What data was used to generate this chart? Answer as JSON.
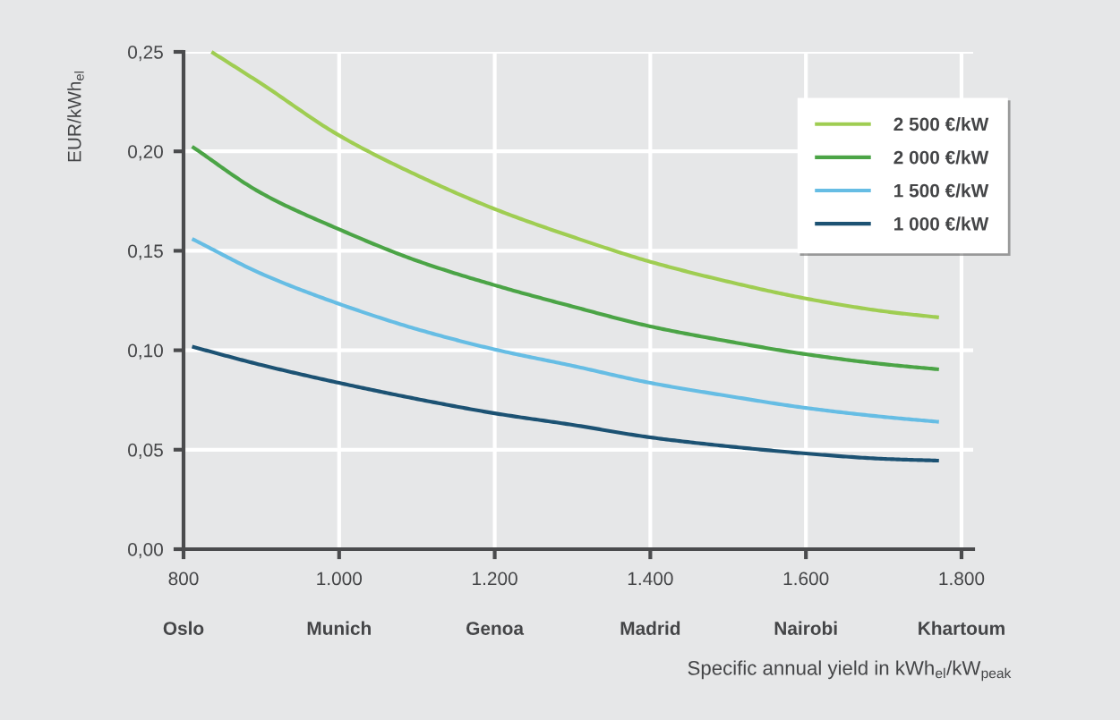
{
  "chart_data": {
    "type": "line",
    "xlabel": "Specific annual yield in kWh$_{el}$/kW$_{peak}$",
    "ylabel": "EUR/kWh$_{el}$",
    "series": [
      {
        "name": "2 500 €/kW",
        "color": "#9fcd52",
        "x": [
          836,
          900,
          1000,
          1100,
          1200,
          1300,
          1400,
          1500,
          1600,
          1700,
          1771
        ],
        "values": [
          0.25,
          0.234,
          0.208,
          0.188,
          0.171,
          0.157,
          0.1445,
          0.1345,
          0.126,
          0.1196,
          0.1165
        ]
      },
      {
        "name": "2 000 €/kW",
        "color": "#4ba446",
        "x": [
          811,
          900,
          1000,
          1100,
          1200,
          1300,
          1400,
          1500,
          1600,
          1700,
          1771
        ],
        "values": [
          0.2024,
          0.179,
          0.1608,
          0.145,
          0.1327,
          0.122,
          0.112,
          0.1045,
          0.098,
          0.093,
          0.0904
        ]
      },
      {
        "name": "1 500 €/kW",
        "color": "#66bde4",
        "x": [
          811,
          900,
          1000,
          1100,
          1200,
          1300,
          1400,
          1500,
          1600,
          1700,
          1771
        ],
        "values": [
          0.156,
          0.1385,
          0.1233,
          0.1106,
          0.1004,
          0.0922,
          0.0836,
          0.077,
          0.071,
          0.0665,
          0.064
        ]
      },
      {
        "name": "1 000 €/kW",
        "color": "#1c5273",
        "x": [
          811,
          900,
          1000,
          1100,
          1200,
          1300,
          1400,
          1500,
          1600,
          1700,
          1771
        ],
        "values": [
          0.1018,
          0.0926,
          0.0836,
          0.0755,
          0.0683,
          0.0625,
          0.0562,
          0.0517,
          0.0481,
          0.0454,
          0.0445
        ]
      }
    ],
    "xlim": [
      800,
      1815
    ],
    "xticks": [
      800,
      {
        "value": 1000,
        "label": "1.000"
      },
      {
        "value": 1200,
        "label": "1.200"
      },
      {
        "value": 1400,
        "label": "1.400"
      },
      {
        "value": 1600,
        "label": "1.600"
      },
      {
        "value": 1800,
        "label": "1.800"
      }
    ],
    "annotations": [
      "Oslo",
      "Munich",
      "Genoa",
      "Madrid",
      "Nairobi",
      "Khartoum"
    ],
    "ylim": [
      0,
      0.25
    ],
    "yticks": [
      {
        "value": 0,
        "label": "0,00"
      },
      {
        "value": 0.05,
        "label": "0,05"
      },
      {
        "value": 0.1,
        "label": "0,10"
      },
      {
        "value": 0.15,
        "label": "0,15"
      },
      {
        "value": 0.2,
        "label": "0,20"
      },
      {
        "value": 0.25,
        "label": "0,25"
      }
    ],
    "grid": true,
    "legend": "top right",
    "marker": "none",
    "line_style": "solid"
  }
}
